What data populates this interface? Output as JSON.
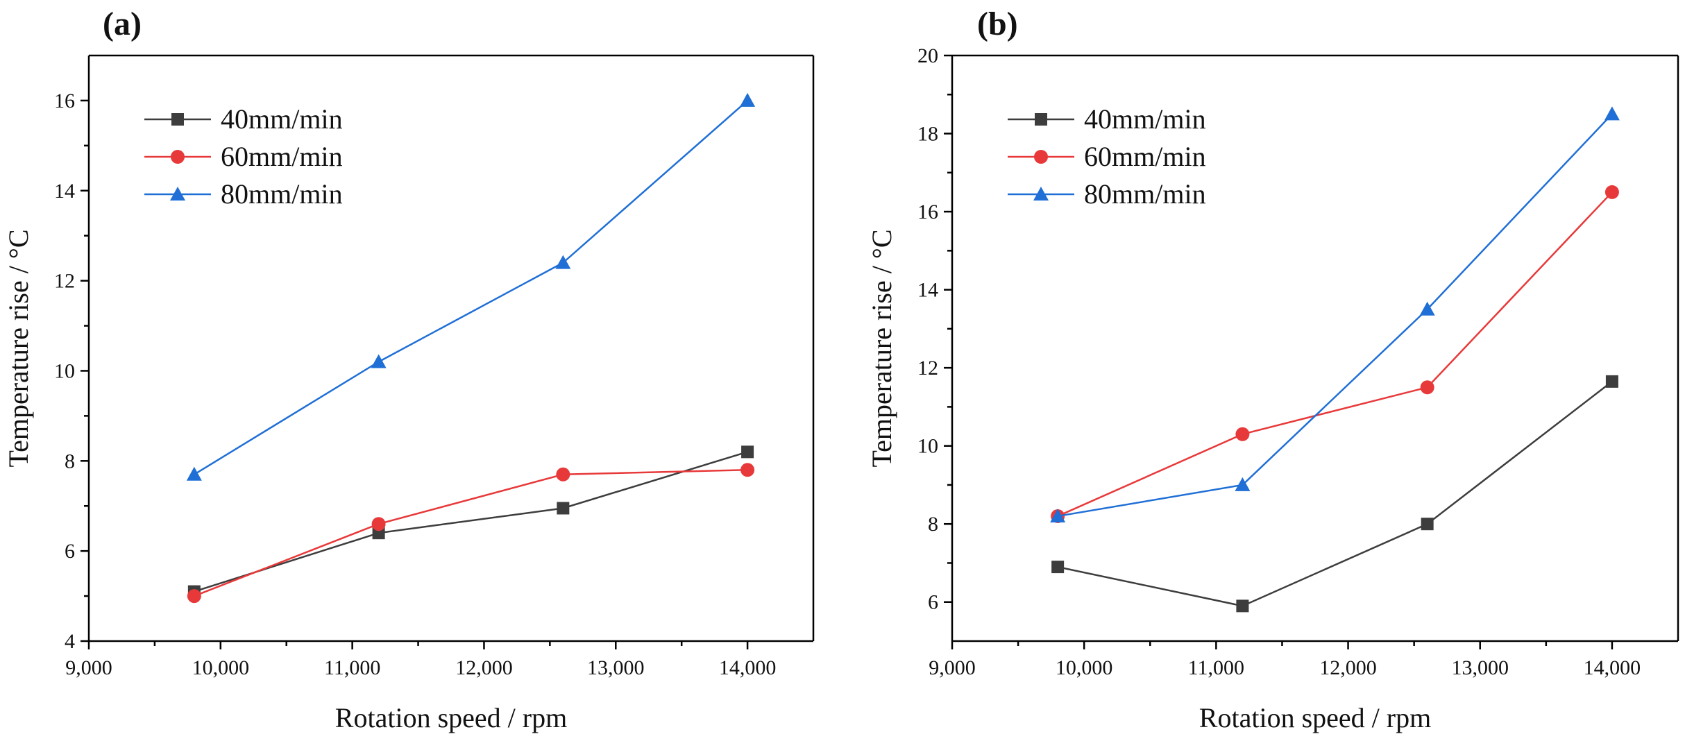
{
  "colors": {
    "40mm/min": "#3d3d3d",
    "60mm/min": "#e8393a",
    "80mm/min": "#1f6fd6"
  },
  "chart_data": [
    {
      "type": "line",
      "panel_label": "(a)",
      "xlabel": "Rotation speed / rpm",
      "ylabel": "Temperature rise / °C",
      "xlim": [
        9000,
        14500
      ],
      "ylim": [
        4,
        17
      ],
      "xticks": [
        9000,
        10000,
        11000,
        12000,
        13000,
        14000
      ],
      "xtick_labels": [
        "9,000",
        "10,000",
        "11,000",
        "12,000",
        "13,000",
        "14,000"
      ],
      "yticks": [
        4,
        6,
        8,
        10,
        12,
        14,
        16
      ],
      "ytick_labels": [
        "4",
        "6",
        "8",
        "10",
        "12",
        "14",
        "16"
      ],
      "grid": false,
      "legend_position": "top-left",
      "x": [
        9800,
        11200,
        12600,
        14000
      ],
      "series": [
        {
          "name": "40mm/min",
          "marker": "square",
          "values": [
            5.1,
            6.4,
            6.95,
            8.2
          ]
        },
        {
          "name": "60mm/min",
          "marker": "circle",
          "values": [
            5.0,
            6.6,
            7.7,
            7.8
          ]
        },
        {
          "name": "80mm/min",
          "marker": "triangle",
          "values": [
            7.7,
            10.2,
            12.4,
            16.0
          ]
        }
      ]
    },
    {
      "type": "line",
      "panel_label": "(b)",
      "xlabel": "Rotation speed / rpm",
      "ylabel": "Temperature rise / °C",
      "xlim": [
        9000,
        14500
      ],
      "ylim": [
        5,
        20
      ],
      "xticks": [
        9000,
        10000,
        11000,
        12000,
        13000,
        14000
      ],
      "xtick_labels": [
        "9,000",
        "10,000",
        "11,000",
        "12,000",
        "13,000",
        "14,000"
      ],
      "yticks": [
        6,
        8,
        10,
        12,
        14,
        16,
        18,
        20
      ],
      "ytick_labels": [
        "6",
        "8",
        "10",
        "12",
        "14",
        "16",
        "18",
        "20"
      ],
      "grid": false,
      "legend_position": "top-left",
      "x": [
        9800,
        11200,
        12600,
        14000
      ],
      "series": [
        {
          "name": "40mm/min",
          "marker": "square",
          "values": [
            6.9,
            5.9,
            8.0,
            11.65
          ]
        },
        {
          "name": "60mm/min",
          "marker": "circle",
          "values": [
            8.2,
            10.3,
            11.5,
            16.5
          ]
        },
        {
          "name": "80mm/min",
          "marker": "triangle",
          "values": [
            8.2,
            9.0,
            13.5,
            18.5
          ]
        }
      ]
    }
  ]
}
